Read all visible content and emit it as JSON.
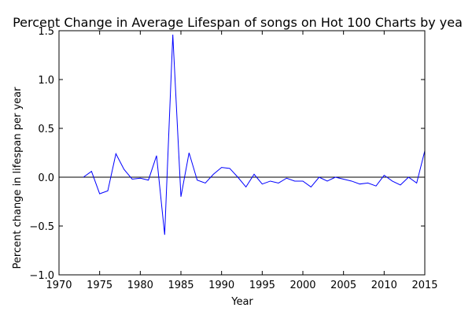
{
  "chart_data": {
    "type": "line",
    "title": "Percent Change in Average Lifespan of songs on Hot 100 Charts by yea",
    "xlabel": "Year",
    "ylabel": "Percent change in lifespan per year",
    "xlim": [
      1970,
      2015
    ],
    "ylim": [
      -1.0,
      1.5
    ],
    "x_ticks": [
      1970,
      1975,
      1980,
      1985,
      1990,
      1995,
      2000,
      2005,
      2010,
      2015
    ],
    "x_tick_labels": [
      "1970",
      "1975",
      "1980",
      "1985",
      "1990",
      "1995",
      "2000",
      "2005",
      "2010",
      "2015"
    ],
    "y_ticks": [
      -1.0,
      -0.5,
      0.0,
      0.5,
      1.0,
      1.5
    ],
    "y_tick_labels": [
      "−1.0",
      "−0.5",
      "0.0",
      "0.5",
      "1.0",
      "1.5"
    ],
    "reference_line_y": 0.0,
    "grid": false,
    "colors": {
      "series": "#0000ff",
      "reference": "#000000",
      "axes": "#000000",
      "background": "#ffffff"
    },
    "series": [
      {
        "x": [
          1973,
          1974,
          1975,
          1976,
          1977,
          1978,
          1979,
          1980,
          1981,
          1982,
          1983,
          1984,
          1985,
          1986,
          1987,
          1988,
          1989,
          1990,
          1991,
          1992,
          1993,
          1994,
          1995,
          1996,
          1997,
          1998,
          1999,
          2000,
          2001,
          2002,
          2003,
          2004,
          2005,
          2006,
          2007,
          2008,
          2009,
          2010,
          2011,
          2012,
          2013,
          2014,
          2015
        ],
        "values": [
          0.0,
          0.06,
          -0.17,
          -0.14,
          0.24,
          0.08,
          -0.02,
          -0.01,
          -0.03,
          0.22,
          -0.59,
          1.46,
          -0.2,
          0.25,
          -0.03,
          -0.06,
          0.03,
          0.1,
          0.09,
          0.0,
          -0.1,
          0.03,
          -0.07,
          -0.04,
          -0.06,
          -0.01,
          -0.04,
          -0.04,
          -0.1,
          0.0,
          -0.04,
          0.0,
          -0.02,
          -0.04,
          -0.07,
          -0.06,
          -0.09,
          0.02,
          -0.04,
          -0.08,
          0.0,
          -0.06,
          0.27
        ]
      }
    ]
  }
}
